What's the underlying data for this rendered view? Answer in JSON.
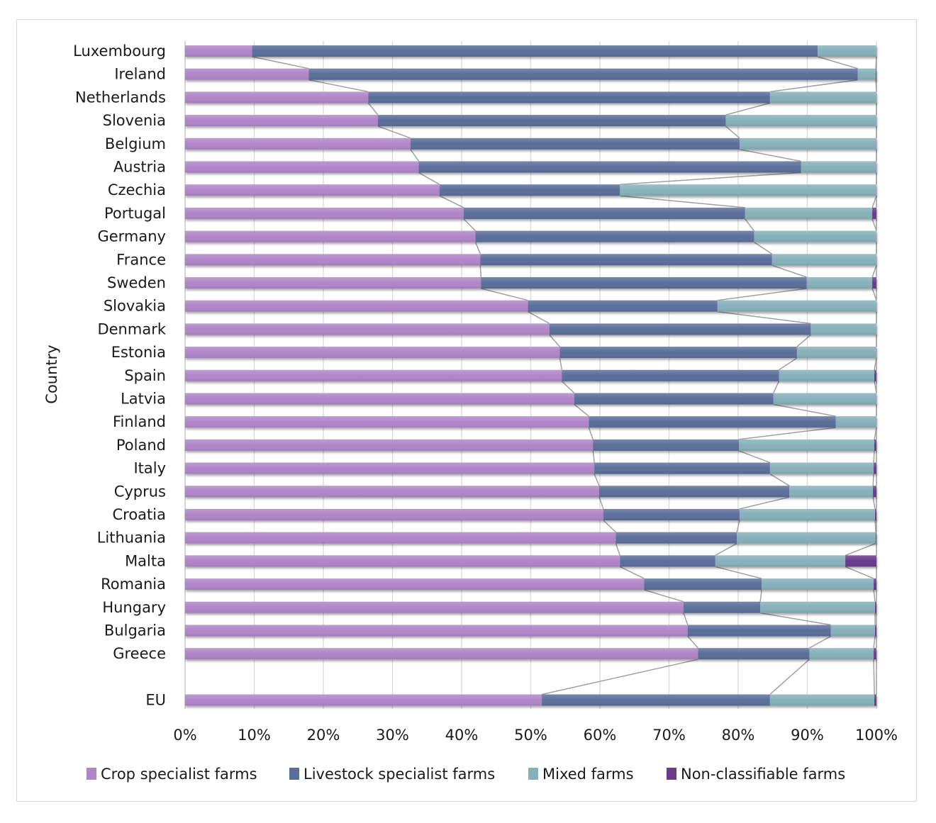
{
  "chart_data": {
    "type": "bar",
    "orientation": "horizontal",
    "stacked": "percent",
    "title": "",
    "xlabel": "",
    "ylabel": "Country",
    "xlim": [
      0,
      100
    ],
    "x_ticks": [
      "0%",
      "10%",
      "20%",
      "30%",
      "40%",
      "50%",
      "60%",
      "70%",
      "80%",
      "90%",
      "100%"
    ],
    "grid": "vertical",
    "legend_position": "bottom",
    "series_lines": true,
    "categories": [
      "Luxembourg",
      "Ireland",
      "Netherlands",
      "Slovenia",
      "Belgium",
      "Austria",
      "Czechia",
      "Portugal",
      "Germany",
      "France",
      "Sweden",
      "Slovakia",
      "Denmark",
      "Estonia",
      "Spain",
      "Latvia",
      "Finland",
      "Poland",
      "Italy",
      "Cyprus",
      "Croatia",
      "Lithuania",
      "Malta",
      "Romania",
      "Hungary",
      "Bulgaria",
      "Greece",
      "EU"
    ],
    "gap_before": [
      "EU"
    ],
    "series": [
      {
        "name": "Crop specialist farms",
        "color": "#b085c8",
        "values": [
          9.7,
          17.9,
          26.5,
          27.9,
          32.6,
          33.8,
          36.8,
          40.3,
          42.0,
          42.7,
          42.8,
          49.6,
          52.7,
          54.2,
          54.5,
          56.3,
          58.4,
          59.0,
          59.2,
          59.9,
          60.5,
          62.3,
          62.9,
          66.4,
          72.1,
          72.7,
          74.2,
          51.6
        ]
      },
      {
        "name": "Livestock specialist farms",
        "color": "#5a6e9b",
        "values": [
          81.8,
          79.4,
          58.1,
          50.3,
          47.6,
          55.3,
          26.1,
          40.7,
          40.3,
          42.2,
          47.1,
          27.4,
          37.8,
          34.3,
          31.4,
          28.8,
          35.7,
          21.1,
          25.4,
          27.5,
          19.7,
          17.5,
          13.8,
          17.0,
          11.1,
          20.7,
          16.1,
          33.0
        ]
      },
      {
        "name": "Mixed farms",
        "color": "#86b0ba",
        "values": [
          8.5,
          2.6,
          15.4,
          21.8,
          19.8,
          10.9,
          37.1,
          18.4,
          17.7,
          15.1,
          9.5,
          23.0,
          9.5,
          11.5,
          13.8,
          14.9,
          5.9,
          19.6,
          15.0,
          12.1,
          19.6,
          20.1,
          18.8,
          16.2,
          16.6,
          6.4,
          9.3,
          15.1
        ]
      },
      {
        "name": "Non-classifiable farms",
        "color": "#6b3a8c",
        "values": [
          0.0,
          0.1,
          0.0,
          0.0,
          0.0,
          0.0,
          0.0,
          0.6,
          0.0,
          0.0,
          0.6,
          0.0,
          0.0,
          0.0,
          0.3,
          0.0,
          0.0,
          0.3,
          0.4,
          0.5,
          0.2,
          0.1,
          4.5,
          0.4,
          0.2,
          0.2,
          0.4,
          0.3
        ]
      }
    ]
  }
}
